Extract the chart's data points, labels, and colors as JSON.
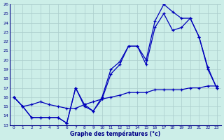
{
  "title": "Graphe des températures (°c)",
  "bg_color": "#cceee8",
  "grid_color": "#aacccc",
  "line_color": "#0000bb",
  "xlim": [
    -0.5,
    23.5
  ],
  "ylim": [
    13,
    26
  ],
  "xticks": [
    0,
    1,
    2,
    3,
    4,
    5,
    6,
    7,
    8,
    9,
    10,
    11,
    12,
    13,
    14,
    15,
    16,
    17,
    18,
    19,
    20,
    21,
    22,
    23
  ],
  "yticks": [
    13,
    14,
    15,
    16,
    17,
    18,
    19,
    20,
    21,
    22,
    23,
    24,
    25,
    26
  ],
  "hours": [
    0,
    1,
    2,
    3,
    4,
    5,
    6,
    7,
    8,
    9,
    10,
    11,
    12,
    13,
    14,
    15,
    16,
    17,
    18,
    19,
    20,
    21,
    22,
    23
  ],
  "line1": [
    16.0,
    15.0,
    13.8,
    13.8,
    13.8,
    13.8,
    13.2,
    17.0,
    15.2,
    14.5,
    16.0,
    19.0,
    19.8,
    21.5,
    21.5,
    20.0,
    24.2,
    26.0,
    25.2,
    24.5,
    24.5,
    22.5,
    19.2,
    17.0
  ],
  "line2": [
    16.0,
    15.0,
    13.8,
    13.8,
    13.8,
    13.8,
    13.2,
    17.0,
    15.0,
    14.5,
    15.8,
    18.5,
    19.5,
    21.5,
    21.5,
    19.5,
    23.5,
    25.0,
    23.2,
    23.5,
    24.5,
    22.5,
    19.0,
    17.0
  ],
  "line3": [
    16.0,
    15.0,
    15.2,
    15.5,
    15.2,
    15.0,
    14.8,
    14.8,
    15.2,
    15.5,
    15.8,
    16.0,
    16.2,
    16.5,
    16.5,
    16.5,
    16.8,
    16.8,
    16.8,
    16.8,
    17.0,
    17.0,
    17.2,
    17.2
  ]
}
